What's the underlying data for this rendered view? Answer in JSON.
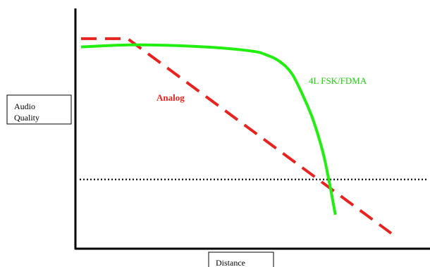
{
  "chart_data": {
    "type": "line",
    "title": "",
    "xlabel": "Distance",
    "ylabel_line1": "Audio",
    "ylabel_line2": "Quality",
    "xlim": [
      0,
      100
    ],
    "ylim": [
      0,
      100
    ],
    "grid": false,
    "series": [
      {
        "name": "Analog",
        "style": "dashed",
        "color": "#e8231f",
        "x": [
          0,
          15,
          100
        ],
        "y": [
          97,
          97,
          3
        ]
      },
      {
        "name": "4L FSK/FDMA",
        "style": "solid",
        "color": "#22ee11",
        "x": [
          0,
          18,
          40,
          55,
          60,
          64,
          68,
          72,
          75,
          78,
          80,
          81,
          82
        ],
        "y": [
          93,
          94,
          93,
          91,
          89,
          86,
          80,
          68,
          57,
          42,
          28,
          20,
          12
        ]
      }
    ],
    "threshold": {
      "style": "dotted",
      "color": "#111111",
      "y": 29
    }
  }
}
